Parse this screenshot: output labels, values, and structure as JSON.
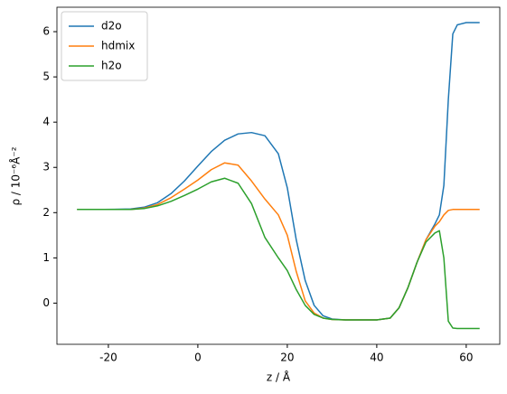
{
  "chart_data": {
    "type": "line",
    "xlabel": "z / Å",
    "ylabel": "ρ / 10⁻⁶Å⁻²",
    "x": [
      -27,
      -21,
      -15,
      -12,
      -9,
      -6,
      -3,
      0,
      3,
      6,
      9,
      12,
      15,
      18,
      20,
      22,
      24,
      26,
      28,
      30,
      33,
      36,
      40,
      43,
      45,
      47,
      49,
      51,
      53,
      54,
      55,
      56,
      57,
      58,
      60,
      63
    ],
    "series": [
      {
        "name": "d2o",
        "color": "#1f77b4",
        "values": [
          2.07,
          2.07,
          2.08,
          2.12,
          2.22,
          2.42,
          2.7,
          3.03,
          3.35,
          3.6,
          3.74,
          3.77,
          3.7,
          3.3,
          2.55,
          1.4,
          0.5,
          -0.05,
          -0.28,
          -0.35,
          -0.37,
          -0.37,
          -0.37,
          -0.33,
          -0.1,
          0.35,
          0.9,
          1.4,
          1.75,
          1.95,
          2.6,
          4.5,
          5.95,
          6.15,
          6.2,
          6.2
        ]
      },
      {
        "name": "hdmix",
        "color": "#ff7f0e",
        "values": [
          2.07,
          2.07,
          2.07,
          2.1,
          2.18,
          2.33,
          2.52,
          2.72,
          2.95,
          3.1,
          3.05,
          2.7,
          2.3,
          1.95,
          1.5,
          0.7,
          0.05,
          -0.22,
          -0.33,
          -0.36,
          -0.37,
          -0.37,
          -0.37,
          -0.33,
          -0.1,
          0.35,
          0.9,
          1.4,
          1.7,
          1.8,
          1.95,
          2.05,
          2.07,
          2.07,
          2.07,
          2.07
        ]
      },
      {
        "name": "h2o",
        "color": "#2ca02c",
        "values": [
          2.07,
          2.07,
          2.07,
          2.09,
          2.15,
          2.25,
          2.38,
          2.52,
          2.68,
          2.76,
          2.65,
          2.2,
          1.45,
          1.0,
          0.72,
          0.3,
          -0.05,
          -0.25,
          -0.33,
          -0.36,
          -0.37,
          -0.37,
          -0.37,
          -0.33,
          -0.1,
          0.35,
          0.9,
          1.35,
          1.55,
          1.6,
          1.0,
          -0.4,
          -0.55,
          -0.56,
          -0.56,
          -0.56
        ]
      }
    ],
    "xlim": [
      -31.5,
      67.5
    ],
    "ylim": [
      -0.91,
      6.54
    ],
    "xticks": [
      -20,
      0,
      20,
      40,
      60
    ],
    "yticks": [
      0,
      1,
      2,
      3,
      4,
      5,
      6
    ],
    "legend": "upper left"
  }
}
